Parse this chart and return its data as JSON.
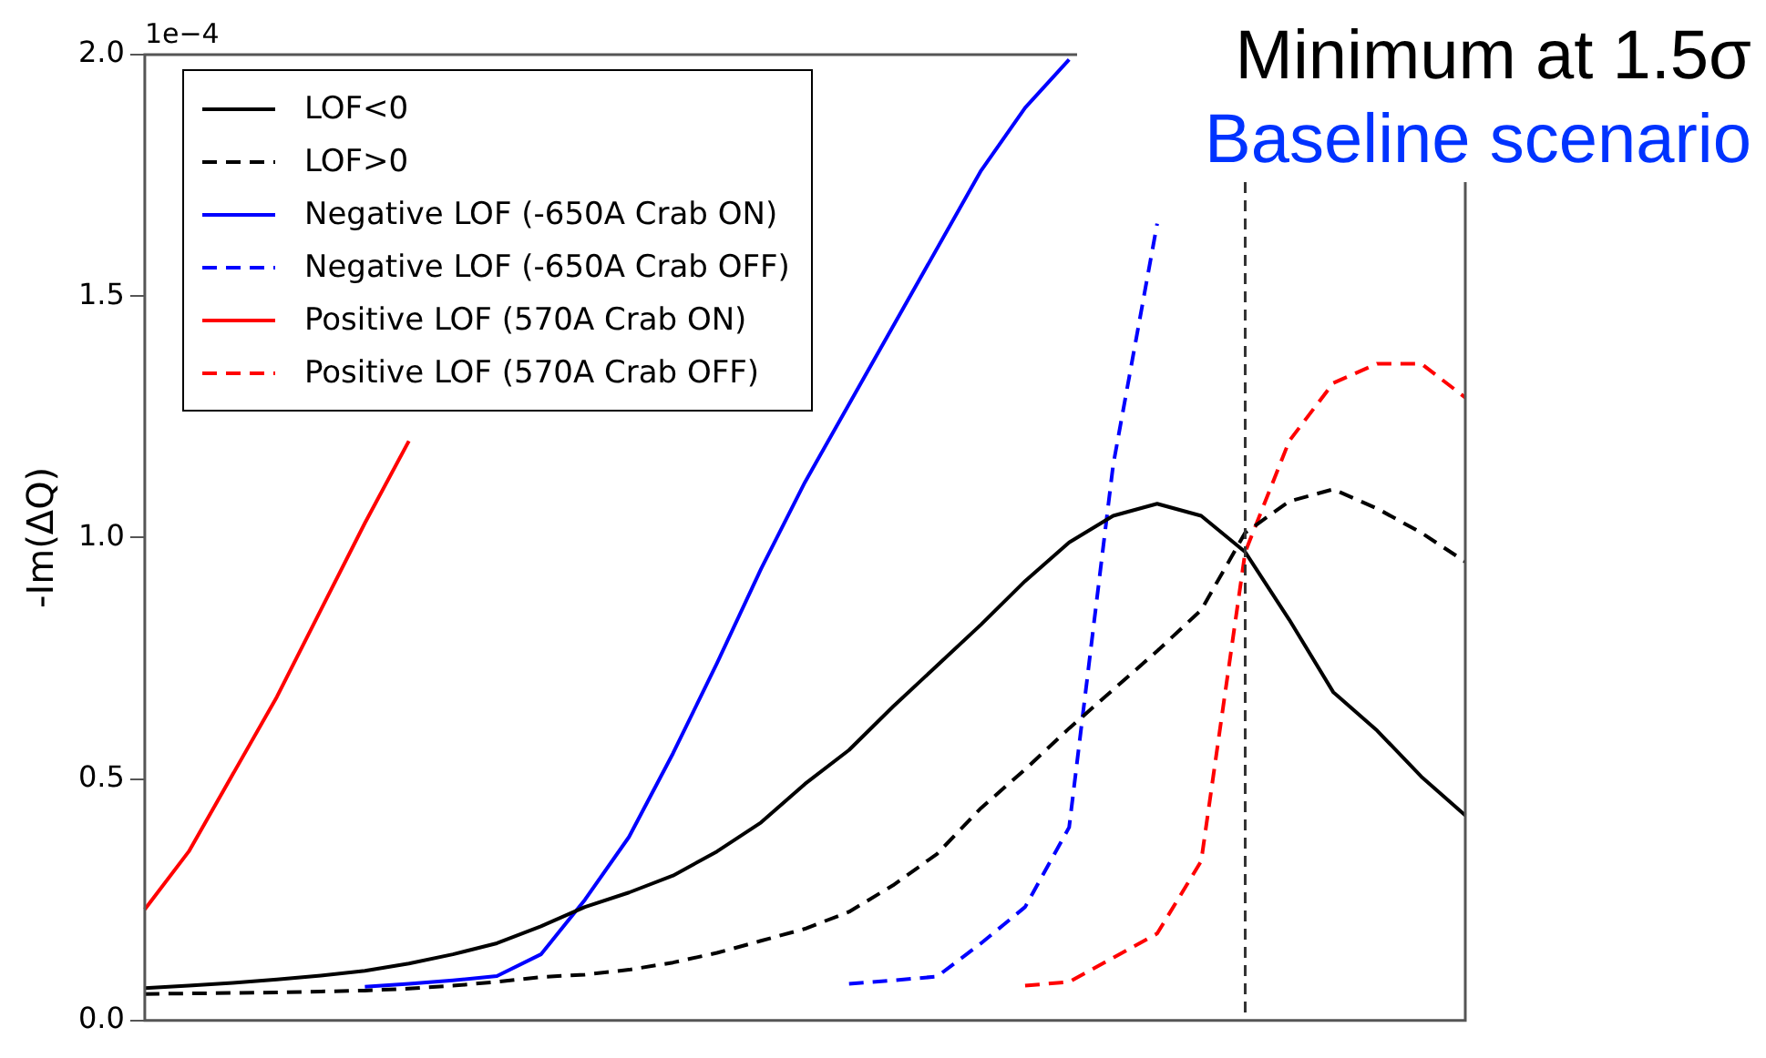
{
  "chart_data": {
    "type": "line",
    "ylabel": "-Im(ΔQ)",
    "annotations": [
      "1e−4",
      "Minimum at 1.5σ",
      "Baseline scenario"
    ],
    "categories": [
      null,
      null,
      null,
      null,
      null,
      null,
      null,
      null,
      null,
      null,
      null,
      null,
      null,
      null,
      null,
      null,
      null,
      null,
      null,
      null,
      null,
      null,
      null,
      null,
      null,
      null,
      null,
      null,
      null,
      null,
      null
    ],
    "ylim": [
      0,
      2.0
    ],
    "yticks": [
      {
        "value": 0,
        "label": "0.0"
      },
      {
        "value": 0.5,
        "label": "0.5"
      },
      {
        "value": 1,
        "label": "1.0"
      },
      {
        "value": 1.5,
        "label": "1.5"
      },
      {
        "value": 2,
        "label": "2.0"
      }
    ],
    "tick_labels": "y",
    "legend": "top left",
    "series": [
      {
        "name": "LOF<0",
        "color": "#000000",
        "line_style": "solid",
        "values": [
          0.067,
          0.072,
          0.078,
          0.085,
          0.093,
          0.103,
          0.118,
          0.137,
          0.16,
          0.195,
          0.235,
          0.265,
          0.3,
          0.35,
          0.41,
          0.49,
          0.56,
          0.65,
          0.735,
          0.82,
          0.91,
          0.99,
          1.045,
          1.07,
          1.045,
          0.97,
          0.83,
          0.68,
          0.6,
          0.505,
          0.425
        ]
      },
      {
        "name": "LOF>0",
        "color": "#000000",
        "line_style": "dashed",
        "values": [
          0.055,
          0.056,
          0.057,
          0.058,
          0.06,
          0.062,
          0.066,
          0.072,
          0.08,
          0.09,
          0.095,
          0.105,
          0.12,
          0.14,
          0.165,
          0.19,
          0.225,
          0.28,
          0.345,
          0.44,
          0.52,
          0.605,
          0.685,
          0.765,
          0.85,
          1.01,
          1.075,
          1.1,
          1.06,
          1.01,
          0.95
        ]
      },
      {
        "name": "Negative LOF (-650A Crab ON)",
        "color": "#0000ff",
        "line_style": "solid",
        "values": [
          null,
          null,
          null,
          null,
          null,
          0.07,
          0.076,
          0.083,
          0.092,
          0.137,
          0.25,
          0.38,
          0.553,
          0.74,
          0.935,
          1.115,
          null,
          null,
          null,
          1.76,
          1.89,
          1.99,
          null,
          null,
          null,
          null,
          null,
          null,
          null,
          null,
          null
        ]
      },
      {
        "name": "Negative LOF (-650A Crab OFF)",
        "color": "#0000ff",
        "line_style": "dashed",
        "values": [
          null,
          null,
          null,
          null,
          null,
          null,
          null,
          null,
          null,
          null,
          null,
          null,
          null,
          null,
          null,
          null,
          0.076,
          0.083,
          0.091,
          0.16,
          0.235,
          0.4,
          1.15,
          1.65,
          null,
          null,
          null,
          null,
          null,
          null,
          null
        ]
      },
      {
        "name": "Positive LOF (570A Crab ON)",
        "color": "#ff0000",
        "line_style": "solid",
        "values": [
          0.23,
          0.35,
          0.51,
          0.67,
          0.85,
          1.03,
          1.2,
          null,
          null,
          null,
          null,
          null,
          null,
          null,
          null,
          null,
          null,
          null,
          null,
          null,
          null,
          null,
          null,
          null,
          null,
          null,
          null,
          null,
          null,
          null,
          null
        ]
      },
      {
        "name": "Positive LOF (570A Crab OFF)",
        "color": "#ff0000",
        "line_style": "dashed",
        "values": [
          null,
          null,
          null,
          null,
          null,
          null,
          null,
          null,
          null,
          null,
          null,
          null,
          null,
          null,
          null,
          null,
          null,
          null,
          null,
          null,
          0.072,
          0.08,
          0.13,
          0.18,
          0.33,
          0.97,
          1.2,
          1.32,
          1.36,
          1.36,
          1.29
        ]
      }
    ]
  }
}
